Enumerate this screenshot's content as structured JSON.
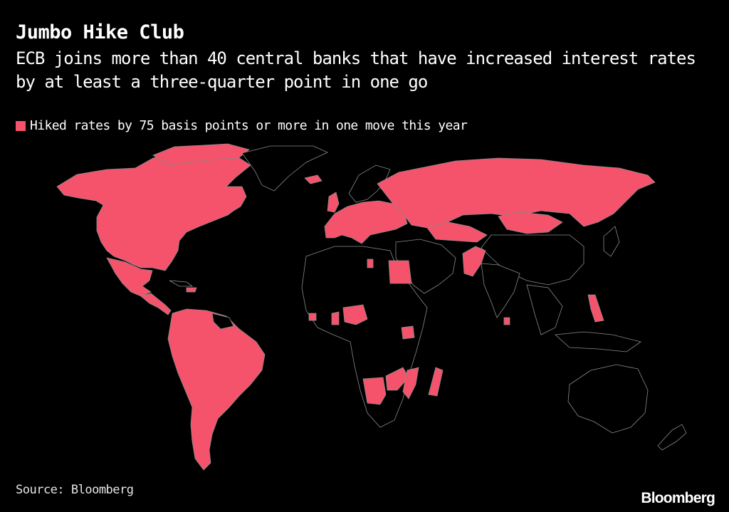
{
  "title": "Jumbo Hike Club",
  "subtitle": "ECB joins more than 40 central banks that have increased interest rates by at least a three-quarter point in one go",
  "legend": {
    "label": "Hiked rates by 75 basis points or more in one move this year",
    "color": "#f4536b"
  },
  "map": {
    "highlight_color": "#f4536b",
    "base_color": "#000000",
    "border_color": "#8a8a8a",
    "highlighted_regions": [
      "Canada",
      "United States",
      "Mexico",
      "Central America",
      "Colombia",
      "Venezuela",
      "Brazil",
      "Peru",
      "Bolivia",
      "Chile",
      "Argentina",
      "Paraguay",
      "Uruguay",
      "Iceland",
      "Euro area",
      "United Kingdom",
      "Poland",
      "Hungary",
      "Czech Republic",
      "Romania",
      "Russia",
      "Kazakhstan",
      "Kyrgyzstan",
      "Mongolia",
      "Egypt",
      "Ghana",
      "Nigeria",
      "Uganda",
      "Angola",
      "Zambia",
      "Mozambique",
      "Madagascar",
      "Pakistan",
      "Sri Lanka",
      "Philippines"
    ]
  },
  "source": "Source: Bloomberg",
  "logo": "Bloomberg"
}
